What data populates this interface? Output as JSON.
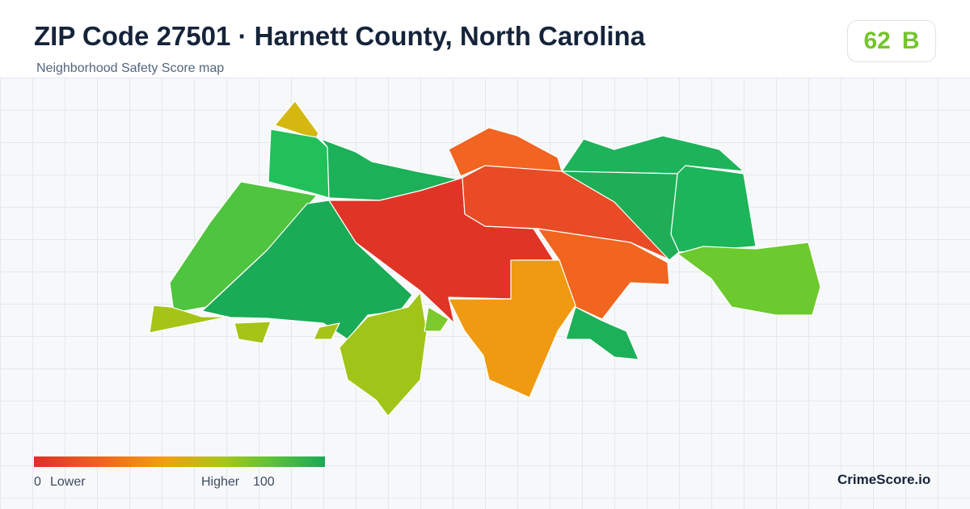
{
  "header": {
    "title": "ZIP Code 27501 · Harnett County, North Carolina",
    "subtitle": "Neighborhood Safety Score map"
  },
  "score": {
    "value": 62,
    "grade": "B"
  },
  "legend": {
    "min": 0,
    "min_label": "Lower",
    "max_label": "Higher",
    "max": 100
  },
  "brand": "CrimeScore.io"
}
